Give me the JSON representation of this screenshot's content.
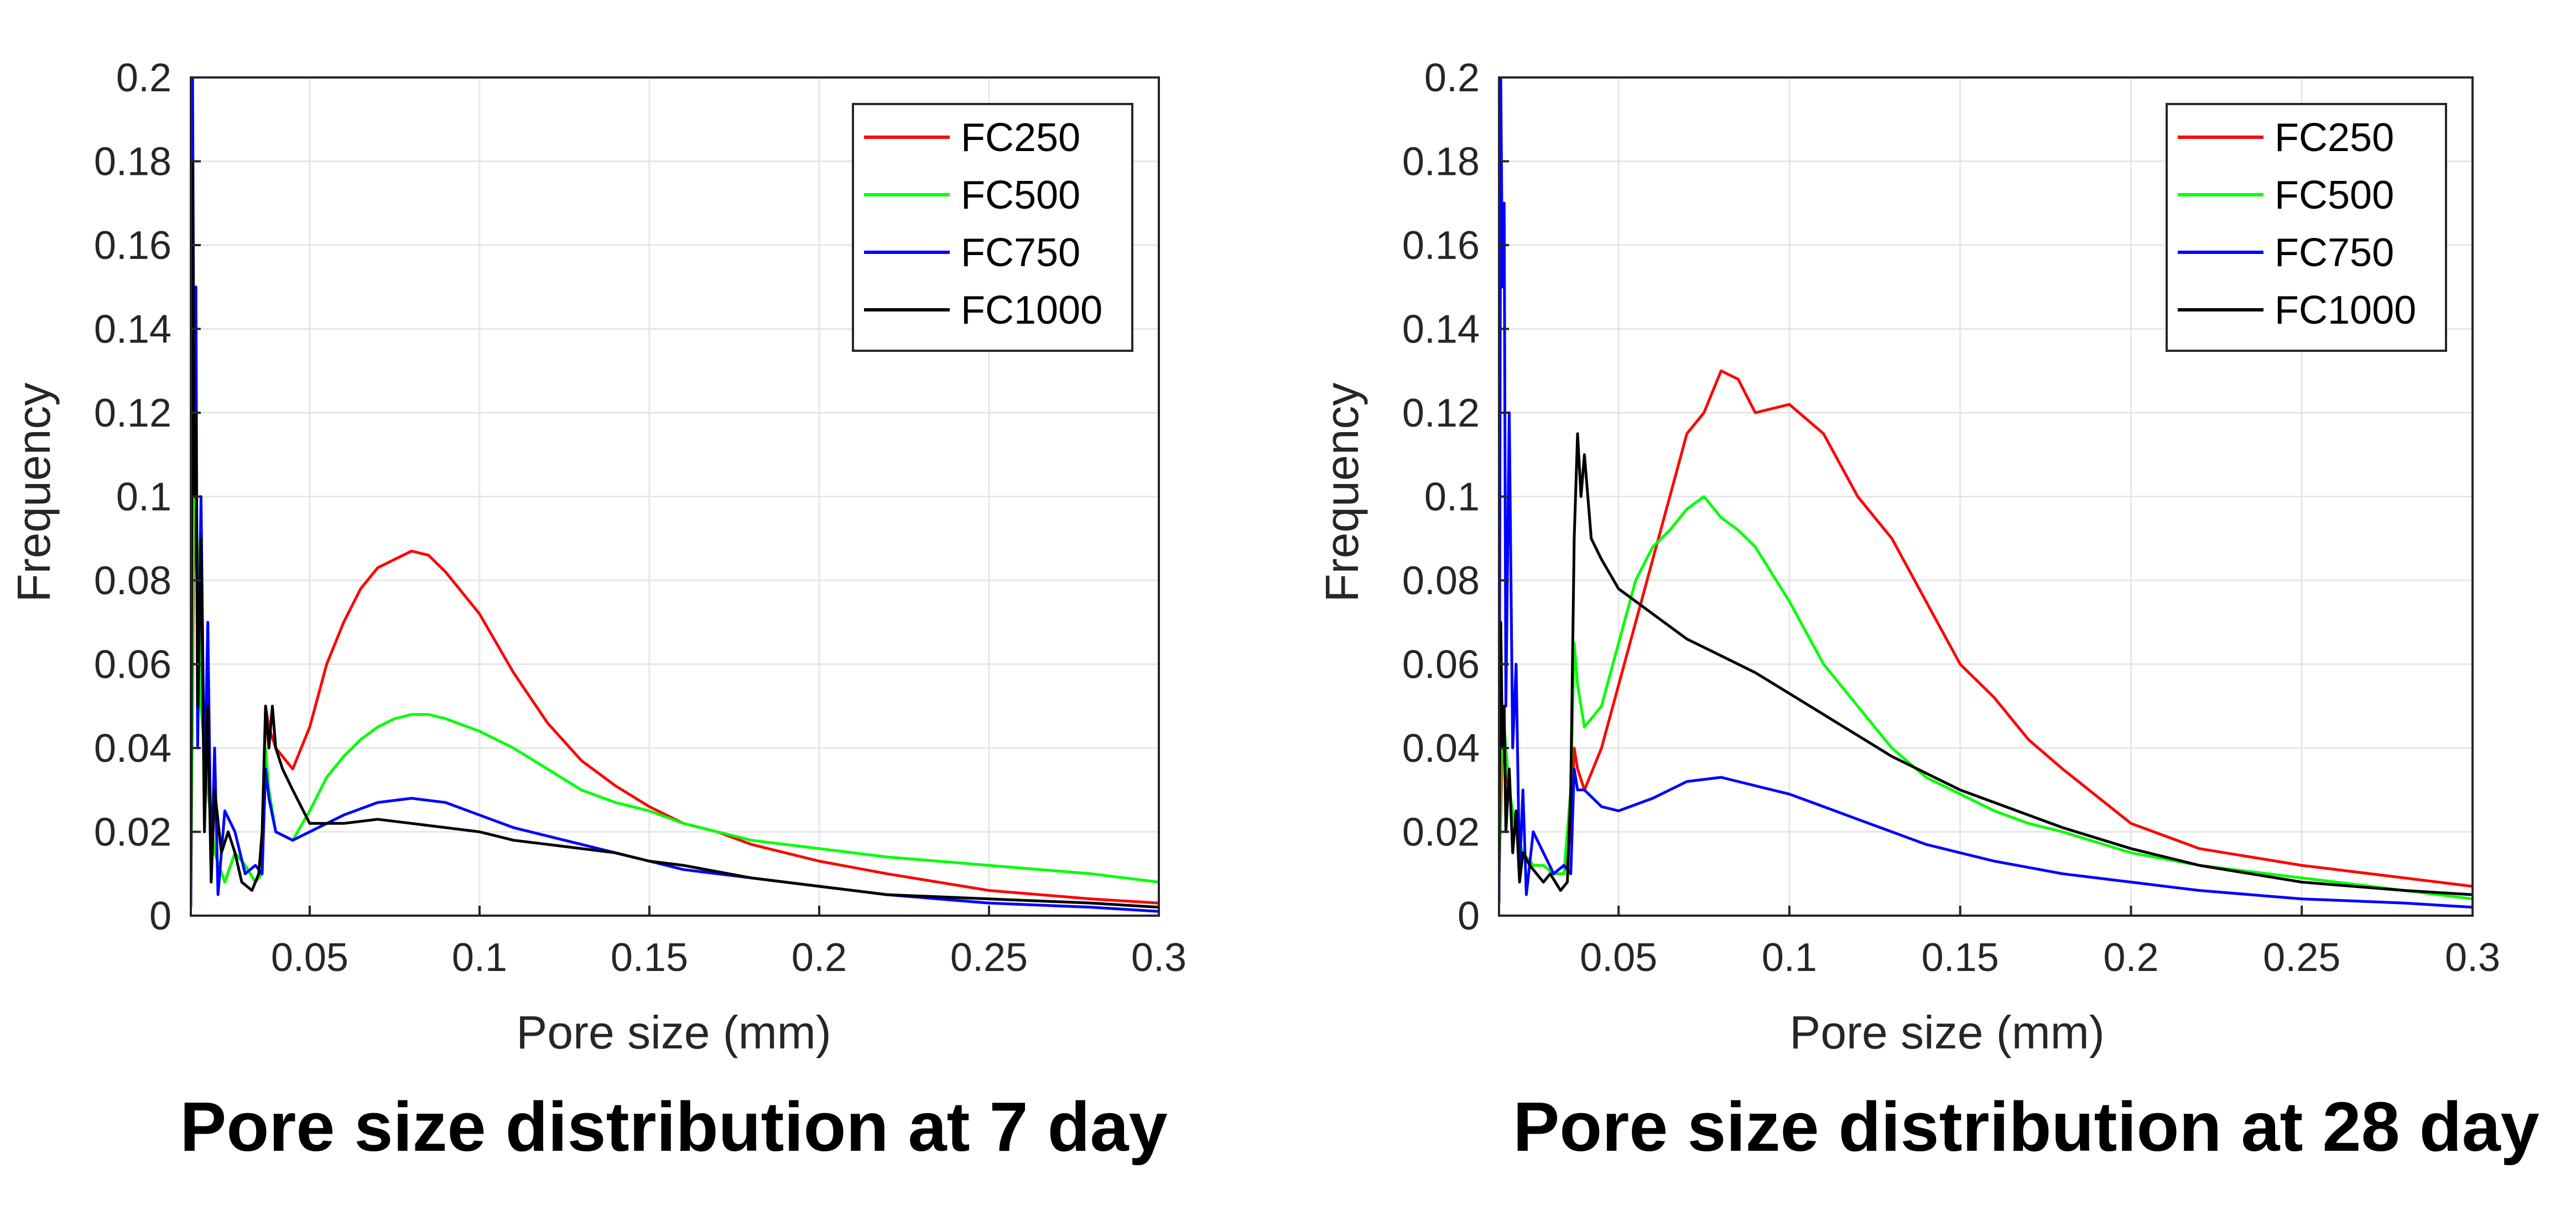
{
  "chart_data": [
    {
      "type": "line",
      "title": "Pore size distribution at 7 day",
      "xlabel": "Pore size (mm)",
      "ylabel": "Frequency",
      "xlim": [
        0.015,
        0.3
      ],
      "ylim": [
        0,
        0.2
      ],
      "xticks": [
        "0.05",
        "0.1",
        "0.15",
        "0.2",
        "0.25",
        "0.3"
      ],
      "yticks": [
        "0",
        "0.02",
        "0.04",
        "0.06",
        "0.08",
        "0.1",
        "0.12",
        "0.14",
        "0.16",
        "0.18",
        "0.2"
      ],
      "grid": true,
      "legend_position": "top-right",
      "series": [
        {
          "name": "FC250",
          "color": "#ff0000",
          "x": [
            0.015,
            0.016,
            0.018,
            0.02,
            0.022,
            0.025,
            0.028,
            0.031,
            0.034,
            0.036,
            0.037,
            0.038,
            0.04,
            0.045,
            0.05,
            0.055,
            0.06,
            0.065,
            0.07,
            0.075,
            0.08,
            0.085,
            0.09,
            0.1,
            0.11,
            0.12,
            0.13,
            0.14,
            0.15,
            0.16,
            0.17,
            0.18,
            0.2,
            0.22,
            0.25,
            0.28,
            0.3
          ],
          "y": [
            0.005,
            0.1,
            0.05,
            0.03,
            0.015,
            0.008,
            0.015,
            0.012,
            0.008,
            0.01,
            0.05,
            0.045,
            0.04,
            0.035,
            0.045,
            0.06,
            0.07,
            0.078,
            0.083,
            0.085,
            0.087,
            0.086,
            0.082,
            0.072,
            0.058,
            0.046,
            0.037,
            0.031,
            0.026,
            0.022,
            0.02,
            0.017,
            0.013,
            0.01,
            0.006,
            0.004,
            0.003
          ]
        },
        {
          "name": "FC500",
          "color": "#00ff00",
          "x": [
            0.015,
            0.016,
            0.018,
            0.02,
            0.022,
            0.025,
            0.028,
            0.031,
            0.034,
            0.036,
            0.037,
            0.038,
            0.04,
            0.045,
            0.05,
            0.055,
            0.06,
            0.065,
            0.07,
            0.075,
            0.08,
            0.085,
            0.09,
            0.1,
            0.11,
            0.12,
            0.13,
            0.14,
            0.15,
            0.16,
            0.17,
            0.18,
            0.2,
            0.22,
            0.25,
            0.28,
            0.3
          ],
          "y": [
            0.005,
            0.12,
            0.05,
            0.03,
            0.015,
            0.008,
            0.015,
            0.012,
            0.008,
            0.01,
            0.04,
            0.03,
            0.02,
            0.018,
            0.025,
            0.033,
            0.038,
            0.042,
            0.045,
            0.047,
            0.048,
            0.048,
            0.047,
            0.044,
            0.04,
            0.035,
            0.03,
            0.027,
            0.025,
            0.022,
            0.02,
            0.018,
            0.016,
            0.014,
            0.012,
            0.01,
            0.008
          ]
        },
        {
          "name": "FC750",
          "color": "#0000ff",
          "x": [
            0.015,
            0.0155,
            0.016,
            0.0165,
            0.017,
            0.018,
            0.019,
            0.02,
            0.021,
            0.022,
            0.023,
            0.025,
            0.028,
            0.031,
            0.034,
            0.036,
            0.037,
            0.038,
            0.04,
            0.045,
            0.05,
            0.06,
            0.07,
            0.08,
            0.09,
            0.1,
            0.11,
            0.12,
            0.13,
            0.14,
            0.15,
            0.16,
            0.18,
            0.2,
            0.22,
            0.25,
            0.28,
            0.3
          ],
          "y": [
            0.002,
            0.2,
            0.11,
            0.15,
            0.04,
            0.1,
            0.03,
            0.07,
            0.01,
            0.04,
            0.005,
            0.025,
            0.02,
            0.01,
            0.012,
            0.01,
            0.035,
            0.028,
            0.02,
            0.018,
            0.02,
            0.024,
            0.027,
            0.028,
            0.027,
            0.024,
            0.021,
            0.019,
            0.017,
            0.015,
            0.013,
            0.011,
            0.009,
            0.007,
            0.005,
            0.003,
            0.002,
            0.001
          ]
        },
        {
          "name": "FC1000",
          "color": "#000000",
          "x": [
            0.015,
            0.0155,
            0.016,
            0.0165,
            0.017,
            0.018,
            0.019,
            0.02,
            0.021,
            0.022,
            0.024,
            0.026,
            0.028,
            0.03,
            0.033,
            0.035,
            0.036,
            0.037,
            0.038,
            0.039,
            0.04,
            0.042,
            0.045,
            0.05,
            0.06,
            0.07,
            0.08,
            0.09,
            0.1,
            0.11,
            0.12,
            0.13,
            0.14,
            0.15,
            0.16,
            0.18,
            0.2,
            0.22,
            0.25,
            0.28,
            0.3
          ],
          "y": [
            0.01,
            0.18,
            0.1,
            0.12,
            0.05,
            0.09,
            0.02,
            0.05,
            0.008,
            0.03,
            0.015,
            0.02,
            0.015,
            0.008,
            0.006,
            0.01,
            0.02,
            0.05,
            0.04,
            0.05,
            0.04,
            0.035,
            0.03,
            0.022,
            0.022,
            0.023,
            0.022,
            0.021,
            0.02,
            0.018,
            0.017,
            0.016,
            0.015,
            0.013,
            0.012,
            0.009,
            0.007,
            0.005,
            0.004,
            0.003,
            0.002
          ]
        }
      ]
    },
    {
      "type": "line",
      "title": "Pore size distribution at 28 day",
      "xlabel": "Pore size (mm)",
      "ylabel": "Frequency",
      "xlim": [
        0.015,
        0.3
      ],
      "ylim": [
        0,
        0.2
      ],
      "xticks": [
        "0.05",
        "0.1",
        "0.15",
        "0.2",
        "0.25",
        "0.3"
      ],
      "yticks": [
        "0",
        "0.02",
        "0.04",
        "0.06",
        "0.08",
        "0.1",
        "0.12",
        "0.14",
        "0.16",
        "0.18",
        "0.2"
      ],
      "grid": true,
      "legend_position": "top-right",
      "series": [
        {
          "name": "FC250",
          "color": "#ff0000",
          "x": [
            0.015,
            0.016,
            0.018,
            0.02,
            0.022,
            0.025,
            0.028,
            0.031,
            0.034,
            0.036,
            0.037,
            0.038,
            0.04,
            0.045,
            0.05,
            0.055,
            0.06,
            0.065,
            0.07,
            0.075,
            0.08,
            0.085,
            0.09,
            0.1,
            0.11,
            0.12,
            0.13,
            0.14,
            0.15,
            0.16,
            0.17,
            0.18,
            0.2,
            0.22,
            0.25,
            0.28,
            0.3
          ],
          "y": [
            0.01,
            0.04,
            0.03,
            0.02,
            0.015,
            0.012,
            0.012,
            0.01,
            0.01,
            0.02,
            0.04,
            0.035,
            0.03,
            0.04,
            0.055,
            0.07,
            0.085,
            0.1,
            0.115,
            0.12,
            0.13,
            0.128,
            0.12,
            0.122,
            0.115,
            0.1,
            0.09,
            0.075,
            0.06,
            0.052,
            0.042,
            0.035,
            0.022,
            0.016,
            0.012,
            0.009,
            0.007
          ]
        },
        {
          "name": "FC500",
          "color": "#00ff00",
          "x": [
            0.015,
            0.016,
            0.018,
            0.02,
            0.022,
            0.025,
            0.028,
            0.031,
            0.034,
            0.036,
            0.037,
            0.038,
            0.04,
            0.045,
            0.05,
            0.055,
            0.06,
            0.065,
            0.07,
            0.075,
            0.08,
            0.085,
            0.09,
            0.1,
            0.11,
            0.12,
            0.13,
            0.14,
            0.15,
            0.16,
            0.17,
            0.18,
            0.2,
            0.22,
            0.25,
            0.28,
            0.3
          ],
          "y": [
            0.01,
            0.05,
            0.03,
            0.02,
            0.015,
            0.012,
            0.012,
            0.01,
            0.01,
            0.03,
            0.065,
            0.055,
            0.045,
            0.05,
            0.065,
            0.08,
            0.088,
            0.092,
            0.097,
            0.1,
            0.095,
            0.092,
            0.088,
            0.075,
            0.06,
            0.05,
            0.04,
            0.033,
            0.029,
            0.025,
            0.022,
            0.02,
            0.015,
            0.012,
            0.009,
            0.006,
            0.004
          ]
        },
        {
          "name": "FC750",
          "color": "#0000ff",
          "x": [
            0.015,
            0.0155,
            0.016,
            0.0165,
            0.017,
            0.018,
            0.019,
            0.02,
            0.021,
            0.022,
            0.023,
            0.025,
            0.028,
            0.031,
            0.034,
            0.036,
            0.037,
            0.038,
            0.04,
            0.045,
            0.05,
            0.06,
            0.07,
            0.08,
            0.09,
            0.1,
            0.11,
            0.12,
            0.13,
            0.14,
            0.15,
            0.16,
            0.18,
            0.2,
            0.22,
            0.25,
            0.28,
            0.3
          ],
          "y": [
            0.003,
            0.2,
            0.15,
            0.17,
            0.05,
            0.12,
            0.04,
            0.06,
            0.01,
            0.03,
            0.005,
            0.02,
            0.015,
            0.01,
            0.012,
            0.01,
            0.035,
            0.03,
            0.03,
            0.026,
            0.025,
            0.028,
            0.032,
            0.033,
            0.031,
            0.029,
            0.026,
            0.023,
            0.02,
            0.017,
            0.015,
            0.013,
            0.01,
            0.008,
            0.006,
            0.004,
            0.003,
            0.002
          ]
        },
        {
          "name": "FC1000",
          "color": "#000000",
          "x": [
            0.015,
            0.0155,
            0.016,
            0.0165,
            0.017,
            0.018,
            0.019,
            0.02,
            0.021,
            0.022,
            0.024,
            0.026,
            0.028,
            0.03,
            0.033,
            0.035,
            0.036,
            0.037,
            0.038,
            0.039,
            0.04,
            0.042,
            0.045,
            0.05,
            0.06,
            0.07,
            0.08,
            0.09,
            0.1,
            0.11,
            0.12,
            0.13,
            0.14,
            0.15,
            0.16,
            0.18,
            0.2,
            0.22,
            0.25,
            0.28,
            0.3
          ],
          "y": [
            0.01,
            0.07,
            0.04,
            0.05,
            0.02,
            0.035,
            0.015,
            0.025,
            0.008,
            0.015,
            0.012,
            0.01,
            0.008,
            0.01,
            0.006,
            0.008,
            0.03,
            0.09,
            0.115,
            0.1,
            0.11,
            0.09,
            0.085,
            0.078,
            0.072,
            0.066,
            0.062,
            0.058,
            0.053,
            0.048,
            0.043,
            0.038,
            0.034,
            0.03,
            0.027,
            0.021,
            0.016,
            0.012,
            0.008,
            0.006,
            0.005
          ]
        }
      ]
    }
  ]
}
